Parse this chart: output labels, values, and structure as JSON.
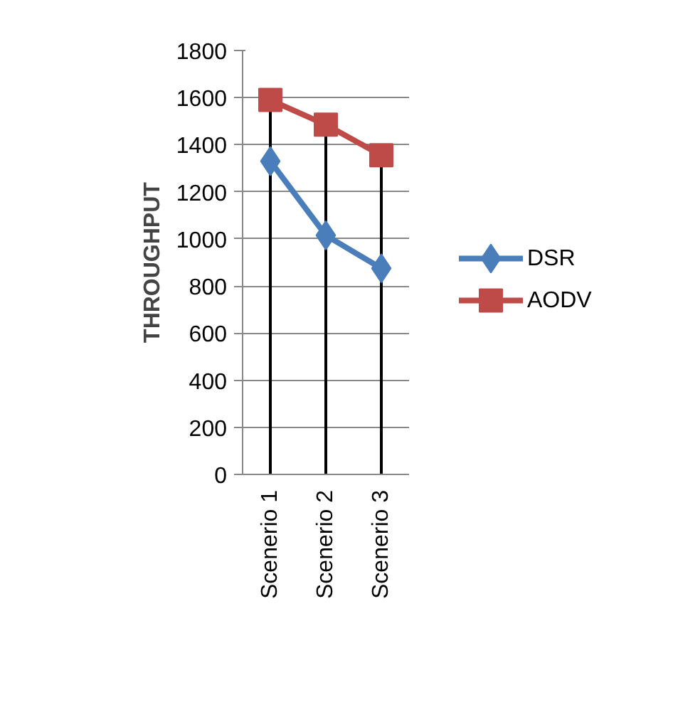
{
  "chart_data": {
    "type": "line",
    "ylabel": "THROUGHPUT",
    "categories": [
      "Scenerio 1",
      "Scenerio 2",
      "Scenerio 3"
    ],
    "series": [
      {
        "name": "DSR",
        "color": "#4a7ebb",
        "marker": "diamond",
        "values": [
          1330,
          1015,
          875
        ]
      },
      {
        "name": "AODV",
        "color": "#be4b48",
        "marker": "square",
        "values": [
          1590,
          1485,
          1355
        ]
      }
    ],
    "ylim": [
      0,
      1800
    ],
    "yticks": [
      0,
      200,
      400,
      600,
      800,
      1000,
      1200,
      1400,
      1600,
      1800
    ],
    "grid": "y",
    "legend": "right",
    "ref_lines": [
      {
        "axis": "x",
        "value": "Scenerio 1",
        "color": "#000000"
      },
      {
        "axis": "x",
        "value": "Scenerio 2",
        "color": "#000000"
      },
      {
        "axis": "x",
        "value": "Scenerio 3",
        "color": "#000000"
      }
    ]
  }
}
